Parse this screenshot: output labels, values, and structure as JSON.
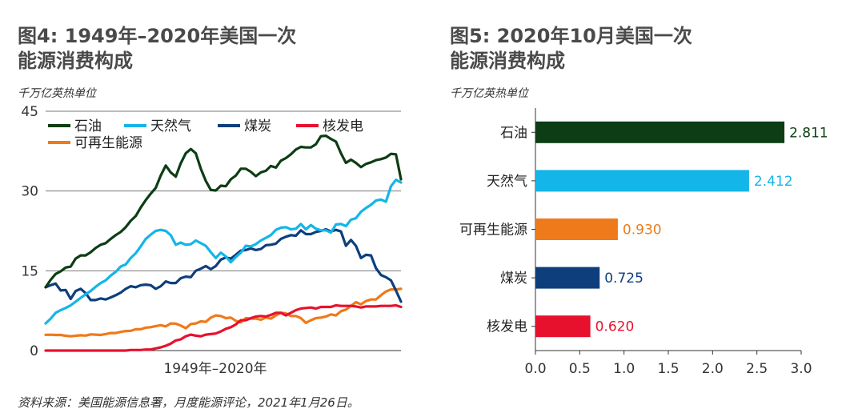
{
  "fig4": {
    "title_line1": "图4: 1949年–2020年美国一次",
    "title_line2": "能源消费构成",
    "unit": "千万亿英热单位",
    "xlabel": "1949年–2020年"
  },
  "fig5": {
    "title_line1": "图5: 2020年10月美国一次",
    "title_line2": "能源消费构成",
    "unit": "千万亿英热单位"
  },
  "source": "资料来源：美国能源信息署，月度能源评论，2021年1月26日。",
  "chart_data": [
    {
      "type": "line",
      "xlabel": "1949年–2020年",
      "ylabel": "千万亿英热单位",
      "ylim": [
        0,
        45
      ],
      "yticks": [
        0,
        15,
        30,
        45
      ],
      "x": [
        1949,
        1950,
        1951,
        1952,
        1953,
        1954,
        1955,
        1956,
        1957,
        1958,
        1959,
        1960,
        1961,
        1962,
        1963,
        1964,
        1965,
        1966,
        1967,
        1968,
        1969,
        1970,
        1971,
        1972,
        1973,
        1974,
        1975,
        1976,
        1977,
        1978,
        1979,
        1980,
        1981,
        1982,
        1983,
        1984,
        1985,
        1986,
        1987,
        1988,
        1989,
        1990,
        1991,
        1992,
        1993,
        1994,
        1995,
        1996,
        1997,
        1998,
        1999,
        2000,
        2001,
        2002,
        2003,
        2004,
        2005,
        2006,
        2007,
        2008,
        2009,
        2010,
        2011,
        2012,
        2013,
        2014,
        2015,
        2016,
        2017,
        2018,
        2019,
        2020
      ],
      "grid": true,
      "legend": "top-left",
      "series": [
        {
          "name": "石油",
          "color": "#0d3d14",
          "values": [
            11.9,
            13.3,
            14.4,
            14.9,
            15.6,
            15.8,
            17.3,
            17.9,
            17.9,
            18.5,
            19.3,
            19.9,
            20.2,
            21.0,
            21.7,
            22.3,
            23.2,
            24.4,
            25.3,
            26.9,
            28.3,
            29.5,
            30.6,
            32.9,
            34.8,
            33.5,
            32.7,
            35.2,
            37.1,
            37.9,
            37.1,
            34.2,
            31.9,
            30.2,
            30.1,
            31.0,
            30.9,
            32.2,
            32.9,
            34.2,
            34.2,
            33.6,
            32.8,
            33.5,
            33.8,
            34.7,
            34.4,
            35.7,
            36.2,
            36.9,
            37.8,
            38.3,
            38.2,
            38.2,
            38.8,
            40.3,
            40.4,
            39.8,
            39.3,
            37.1,
            35.3,
            35.9,
            35.3,
            34.5,
            35.1,
            35.4,
            35.8,
            36.0,
            36.3,
            37.0,
            36.9,
            32.2
          ]
        },
        {
          "name": "天然气",
          "color": "#14b5e8",
          "values": [
            5.1,
            6.0,
            7.1,
            7.6,
            8.0,
            8.5,
            9.2,
            9.9,
            10.6,
            11.2,
            12.0,
            12.7,
            13.2,
            14.1,
            14.8,
            15.8,
            16.2,
            17.4,
            18.3,
            19.6,
            21.0,
            21.8,
            22.5,
            22.7,
            22.5,
            21.7,
            19.9,
            20.3,
            19.9,
            20.0,
            20.7,
            20.2,
            19.7,
            18.5,
            17.4,
            18.4,
            17.7,
            16.6,
            17.6,
            18.4,
            19.7,
            19.6,
            20.0,
            20.7,
            21.2,
            21.7,
            22.7,
            23.1,
            23.2,
            22.8,
            22.9,
            23.8,
            22.8,
            23.6,
            22.9,
            22.6,
            22.6,
            22.2,
            23.7,
            23.8,
            23.4,
            24.6,
            24.9,
            26.1,
            26.8,
            27.4,
            28.2,
            28.4,
            28.0,
            30.9,
            32.1,
            31.6
          ]
        },
        {
          "name": "煤炭",
          "color": "#0e3f7c",
          "values": [
            11.9,
            12.3,
            12.6,
            11.3,
            11.4,
            9.7,
            11.2,
            11.6,
            10.8,
            9.5,
            9.5,
            9.8,
            9.6,
            10.0,
            10.4,
            10.9,
            11.6,
            12.1,
            11.9,
            12.3,
            12.4,
            12.3,
            11.6,
            12.1,
            13.0,
            12.7,
            12.7,
            13.6,
            13.9,
            13.8,
            15.0,
            15.4,
            15.9,
            15.3,
            15.9,
            17.1,
            17.5,
            17.3,
            18.0,
            18.8,
            18.9,
            19.2,
            18.9,
            19.1,
            19.8,
            19.9,
            20.1,
            21.0,
            21.4,
            21.7,
            21.6,
            22.6,
            21.9,
            21.9,
            22.3,
            22.5,
            22.8,
            22.4,
            22.7,
            22.4,
            19.7,
            20.8,
            19.7,
            17.4,
            18.0,
            17.9,
            15.5,
            14.2,
            13.8,
            13.2,
            11.3,
            9.2
          ]
        },
        {
          "name": "核发电",
          "color": "#e8112d",
          "values": [
            0,
            0,
            0,
            0,
            0,
            0,
            0,
            0,
            0,
            0,
            0,
            0,
            0,
            0,
            0,
            0,
            0,
            0.1,
            0.1,
            0.1,
            0.2,
            0.2,
            0.4,
            0.6,
            0.9,
            1.3,
            1.9,
            2.1,
            2.7,
            3.0,
            2.8,
            2.7,
            3.0,
            3.1,
            3.2,
            3.6,
            4.1,
            4.4,
            4.9,
            5.7,
            5.7,
            6.1,
            6.4,
            6.5,
            6.4,
            6.7,
            7.1,
            7.1,
            6.6,
            7.1,
            7.6,
            7.9,
            8.0,
            8.1,
            7.9,
            8.2,
            8.2,
            8.2,
            8.5,
            8.4,
            8.4,
            8.4,
            8.3,
            8.1,
            8.3,
            8.3,
            8.3,
            8.4,
            8.4,
            8.4,
            8.5,
            8.2
          ]
        },
        {
          "name": "可再生能源",
          "color": "#ee7a1c",
          "values": [
            2.97,
            2.98,
            2.94,
            2.94,
            2.78,
            2.7,
            2.78,
            2.87,
            2.82,
            3.04,
            2.99,
            2.93,
            3.1,
            3.3,
            3.3,
            3.5,
            3.67,
            3.7,
            4.0,
            4.0,
            4.3,
            4.4,
            4.6,
            4.77,
            4.55,
            5.1,
            5.05,
            4.7,
            4.2,
            5.0,
            5.1,
            5.5,
            5.4,
            6.2,
            6.6,
            6.5,
            6.1,
            6.2,
            5.6,
            5.3,
            6.1,
            6.0,
            6.0,
            5.8,
            6.2,
            6.0,
            6.6,
            7.1,
            7.0,
            6.5,
            6.5,
            6.1,
            5.2,
            5.7,
            6.1,
            6.2,
            6.4,
            6.8,
            6.6,
            7.4,
            7.7,
            8.4,
            9.1,
            8.7,
            9.3,
            9.6,
            9.6,
            10.4,
            11.1,
            11.5,
            11.5,
            11.6
          ]
        }
      ]
    },
    {
      "type": "bar",
      "orientation": "horizontal",
      "ylabel": "千万亿英热单位",
      "xlim": [
        0,
        3.0
      ],
      "xticks": [
        "0.0",
        "0.5",
        "1.0",
        "1.5",
        "2.0",
        "2.5",
        "3.0"
      ],
      "categories": [
        "石油",
        "天然气",
        "可再生能源",
        "煤炭",
        "核发电"
      ],
      "values": [
        2.811,
        2.412,
        0.93,
        0.725,
        0.62
      ],
      "value_labels": [
        "2.811",
        "2.412",
        "0.930",
        "0.725",
        "0.620"
      ],
      "colors": [
        "#0d3d14",
        "#14b5e8",
        "#ee7a1c",
        "#0e3f7c",
        "#e8112d"
      ]
    }
  ]
}
